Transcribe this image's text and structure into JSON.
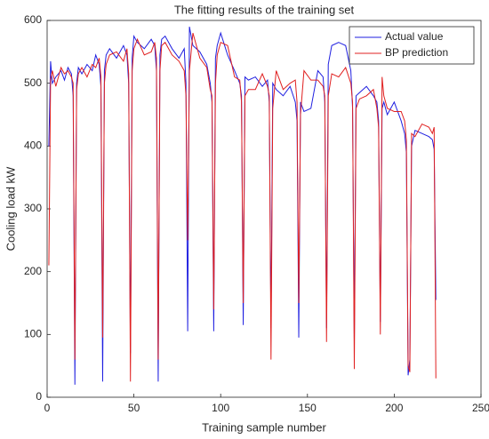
{
  "chart_data": {
    "type": "line",
    "title": "The fitting results of the training set",
    "xlabel": "Training sample number",
    "ylabel": "Cooling load kW",
    "x": [
      1,
      2,
      3,
      5,
      8,
      10,
      12,
      14,
      15,
      16,
      17,
      18,
      20,
      23,
      26,
      28,
      30,
      31,
      32,
      33,
      34,
      36,
      40,
      44,
      46,
      47,
      48,
      49,
      50,
      52,
      56,
      60,
      62,
      63,
      64,
      65,
      66,
      68,
      72,
      76,
      79,
      80,
      81,
      82,
      84,
      88,
      92,
      94,
      95,
      96,
      97,
      98,
      100,
      104,
      108,
      111,
      112,
      113,
      114,
      116,
      120,
      124,
      127,
      128,
      129,
      130,
      132,
      136,
      140,
      143,
      144,
      145,
      146,
      148,
      152,
      156,
      159,
      160,
      161,
      162,
      164,
      168,
      172,
      175,
      176,
      177,
      178,
      180,
      184,
      188,
      190,
      191,
      192,
      193,
      194,
      196,
      200,
      204,
      206,
      207,
      208,
      209,
      210,
      212,
      216,
      220,
      222,
      223,
      224
    ],
    "series": [
      {
        "name": "Actual value",
        "color": "#1f1fe0",
        "values": [
          400,
          535,
          500,
          510,
          520,
          505,
          525,
          515,
          480,
          20,
          500,
          525,
          515,
          530,
          520,
          545,
          530,
          495,
          25,
          520,
          545,
          555,
          540,
          560,
          545,
          500,
          70,
          540,
          575,
          565,
          555,
          570,
          560,
          520,
          25,
          545,
          570,
          575,
          555,
          540,
          555,
          500,
          105,
          590,
          560,
          550,
          530,
          500,
          470,
          105,
          540,
          560,
          580,
          545,
          520,
          500,
          480,
          115,
          510,
          505,
          510,
          495,
          505,
          470,
          110,
          500,
          490,
          480,
          495,
          470,
          440,
          95,
          470,
          455,
          460,
          520,
          510,
          470,
          110,
          530,
          560,
          565,
          560,
          520,
          460,
          90,
          480,
          485,
          495,
          480,
          470,
          440,
          120,
          460,
          470,
          450,
          470,
          440,
          420,
          390,
          35,
          60,
          400,
          425,
          420,
          415,
          410,
          395,
          155
        ]
      },
      {
        "name": "BP prediction",
        "color": "#e02020",
        "values": [
          210,
          505,
          520,
          495,
          525,
          515,
          520,
          510,
          500,
          60,
          490,
          515,
          525,
          510,
          530,
          525,
          540,
          510,
          95,
          500,
          530,
          545,
          550,
          535,
          555,
          515,
          25,
          520,
          555,
          570,
          545,
          550,
          565,
          540,
          60,
          520,
          560,
          565,
          545,
          535,
          520,
          480,
          250,
          520,
          580,
          540,
          525,
          490,
          480,
          140,
          500,
          545,
          565,
          560,
          510,
          505,
          470,
          150,
          480,
          490,
          490,
          515,
          495,
          480,
          60,
          460,
          520,
          490,
          500,
          505,
          470,
          150,
          450,
          520,
          505,
          505,
          495,
          480,
          88,
          480,
          515,
          510,
          525,
          500,
          470,
          45,
          460,
          475,
          480,
          490,
          460,
          430,
          100,
          510,
          480,
          460,
          455,
          455,
          440,
          410,
          50,
          40,
          420,
          415,
          435,
          430,
          420,
          430,
          30
        ]
      }
    ],
    "xlim": [
      0,
      250
    ],
    "xticks": [
      0,
      50,
      100,
      150,
      200,
      250
    ],
    "ylim": [
      0,
      600
    ],
    "yticks": [
      0,
      100,
      200,
      300,
      400,
      500,
      600
    ],
    "legend": "upper right"
  }
}
